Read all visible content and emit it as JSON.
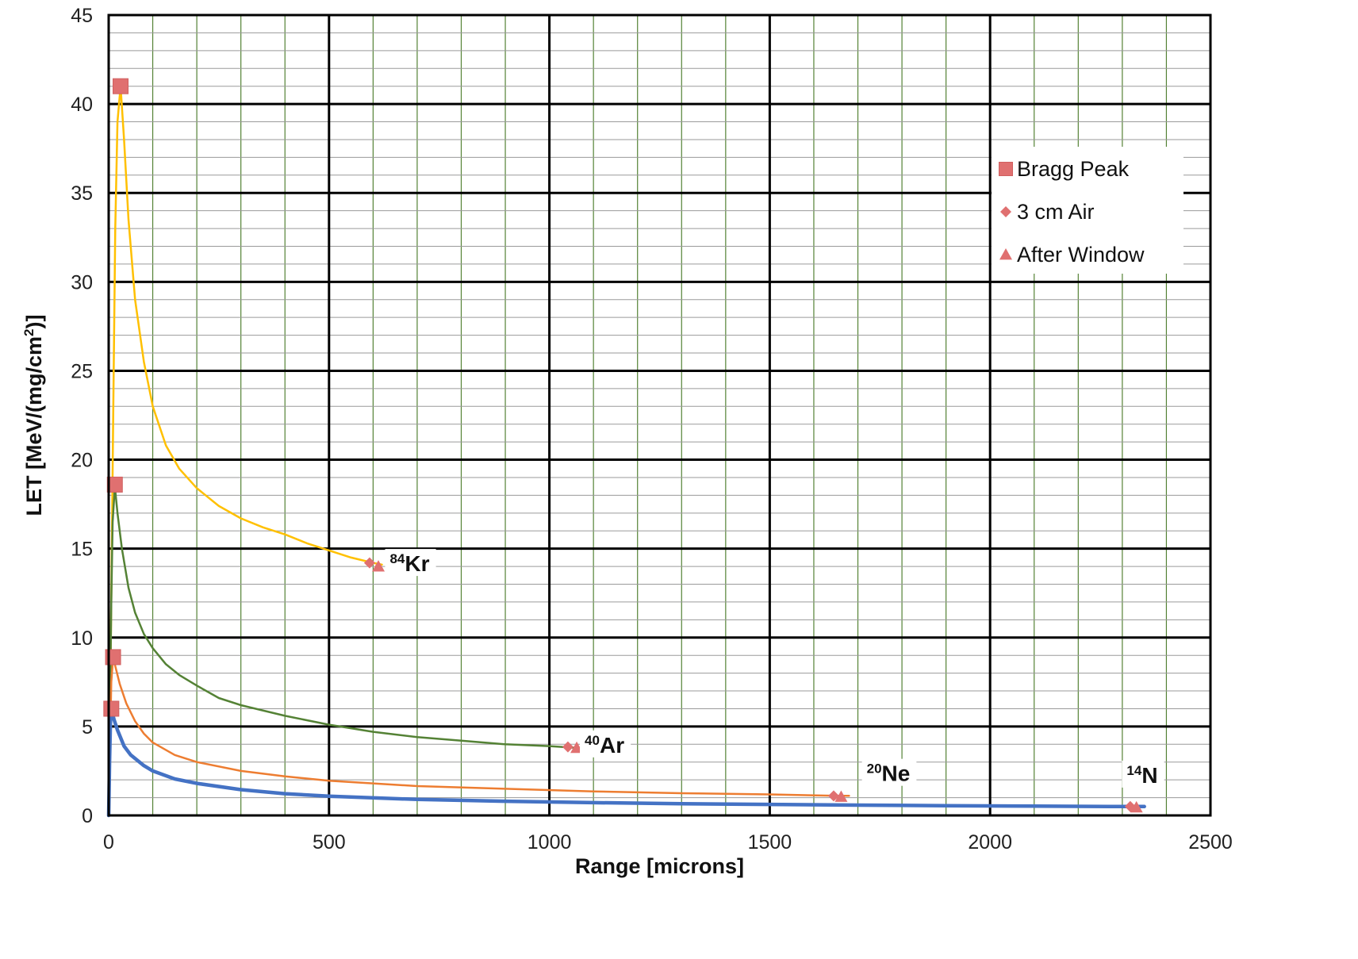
{
  "chart_data": {
    "type": "line",
    "title": "",
    "xlabel": "Range [microns]",
    "ylabel_main": "LET [MeV/(mg/cm",
    "ylabel_sup": "2",
    "ylabel_end": ")]",
    "xlim": [
      0,
      2500
    ],
    "ylim": [
      0,
      45
    ],
    "x_ticks": [
      0,
      500,
      1000,
      1500,
      2000,
      2500
    ],
    "y_ticks": [
      0,
      5,
      10,
      15,
      20,
      25,
      30,
      35,
      40,
      45
    ],
    "grid": true,
    "legend_position": "top-right",
    "legend": [
      {
        "label": "Bragg Peak",
        "marker": "square"
      },
      {
        "label": "3 cm Air",
        "marker": "diamond"
      },
      {
        "label": "After Window",
        "marker": "triangle"
      }
    ],
    "series": [
      {
        "ion": "84Kr",
        "label_mass": "84",
        "label_symbol": "Kr",
        "color": "#FFC000",
        "stroke": 2.5,
        "points": [
          [
            0,
            0
          ],
          [
            5,
            10
          ],
          [
            10,
            22
          ],
          [
            15,
            33
          ],
          [
            20,
            39
          ],
          [
            27,
            41
          ],
          [
            35,
            38
          ],
          [
            45,
            33.5
          ],
          [
            60,
            29
          ],
          [
            80,
            25.5
          ],
          [
            100,
            23
          ],
          [
            130,
            20.8
          ],
          [
            160,
            19.5
          ],
          [
            200,
            18.4
          ],
          [
            250,
            17.4
          ],
          [
            300,
            16.7
          ],
          [
            350,
            16.2
          ],
          [
            400,
            15.8
          ],
          [
            450,
            15.3
          ],
          [
            500,
            14.9
          ],
          [
            550,
            14.5
          ],
          [
            600,
            14.2
          ],
          [
            620,
            14.1
          ]
        ]
      },
      {
        "ion": "40Ar",
        "label_mass": "40",
        "label_symbol": "Ar",
        "color": "#548235",
        "stroke": 2.5,
        "points": [
          [
            0,
            0
          ],
          [
            3,
            6
          ],
          [
            6,
            12
          ],
          [
            9,
            16.5
          ],
          [
            14,
            18.5
          ],
          [
            20,
            17
          ],
          [
            30,
            15
          ],
          [
            45,
            12.8
          ],
          [
            60,
            11.4
          ],
          [
            80,
            10.2
          ],
          [
            100,
            9.4
          ],
          [
            130,
            8.5
          ],
          [
            160,
            7.9
          ],
          [
            200,
            7.3
          ],
          [
            250,
            6.6
          ],
          [
            300,
            6.2
          ],
          [
            400,
            5.6
          ],
          [
            500,
            5.1
          ],
          [
            600,
            4.7
          ],
          [
            700,
            4.4
          ],
          [
            800,
            4.2
          ],
          [
            900,
            4.0
          ],
          [
            1000,
            3.9
          ],
          [
            1060,
            3.8
          ],
          [
            1075,
            3.8
          ]
        ]
      },
      {
        "ion": "20Ne",
        "label_mass": "20",
        "label_symbol": "Ne",
        "color": "#ED7D31",
        "stroke": 2.5,
        "points": [
          [
            0,
            0
          ],
          [
            3,
            4
          ],
          [
            6,
            7.5
          ],
          [
            10,
            8.9
          ],
          [
            15,
            8.4
          ],
          [
            25,
            7.4
          ],
          [
            40,
            6.3
          ],
          [
            60,
            5.3
          ],
          [
            80,
            4.6
          ],
          [
            100,
            4.1
          ],
          [
            150,
            3.4
          ],
          [
            200,
            3.0
          ],
          [
            300,
            2.5
          ],
          [
            400,
            2.2
          ],
          [
            500,
            1.95
          ],
          [
            700,
            1.65
          ],
          [
            900,
            1.5
          ],
          [
            1100,
            1.35
          ],
          [
            1300,
            1.25
          ],
          [
            1500,
            1.18
          ],
          [
            1650,
            1.1
          ],
          [
            1680,
            1.1
          ]
        ]
      },
      {
        "ion": "14N",
        "label_mass": "14",
        "label_symbol": "N",
        "color": "#4472C4",
        "stroke": 4.5,
        "points": [
          [
            0,
            0
          ],
          [
            2,
            3
          ],
          [
            4,
            5.2
          ],
          [
            6,
            6
          ],
          [
            12,
            5.4
          ],
          [
            20,
            4.8
          ],
          [
            35,
            3.9
          ],
          [
            50,
            3.4
          ],
          [
            80,
            2.8
          ],
          [
            100,
            2.5
          ],
          [
            150,
            2.05
          ],
          [
            200,
            1.8
          ],
          [
            300,
            1.45
          ],
          [
            400,
            1.22
          ],
          [
            500,
            1.08
          ],
          [
            700,
            0.9
          ],
          [
            900,
            0.8
          ],
          [
            1100,
            0.72
          ],
          [
            1300,
            0.66
          ],
          [
            1500,
            0.62
          ],
          [
            1700,
            0.58
          ],
          [
            1900,
            0.55
          ],
          [
            2100,
            0.52
          ],
          [
            2300,
            0.5
          ],
          [
            2350,
            0.5
          ]
        ]
      }
    ],
    "bragg_peak": [
      [
        27,
        41
      ],
      [
        14,
        18.6
      ],
      [
        10,
        8.9
      ],
      [
        6,
        6
      ]
    ],
    "air_3cm": [
      [
        592,
        14.2
      ],
      [
        1042,
        3.85
      ],
      [
        1645,
        1.1
      ],
      [
        2318,
        0.5
      ]
    ],
    "after_window": [
      [
        612,
        14.0
      ],
      [
        1062,
        3.8
      ],
      [
        1662,
        1.05
      ],
      [
        2332,
        0.45
      ]
    ],
    "ion_label_anchor": [
      [
        638,
        14.0
      ],
      [
        1080,
        3.8
      ],
      [
        1720,
        2.2
      ],
      [
        2310,
        2.1
      ]
    ]
  }
}
